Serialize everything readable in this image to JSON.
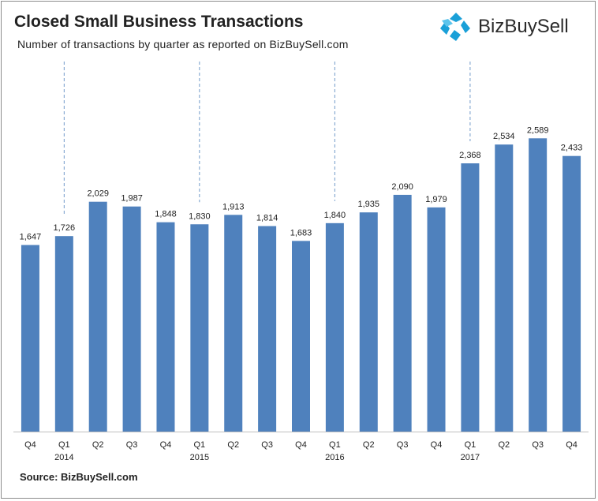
{
  "header": {
    "title": "Closed Small Business Transactions",
    "subtitle": "Number of transactions by quarter as reported  on  BizBuySell.com"
  },
  "logo": {
    "text": "BizBuySell",
    "icon": "bizbuysell-star-icon",
    "color": "#1aa0d8"
  },
  "footer": {
    "source": "Source: BizBuySell.com"
  },
  "colors": {
    "bar": "#4f81bd",
    "text": "#222222"
  },
  "chart_data": {
    "type": "bar",
    "title": "Closed Small Business Transactions",
    "categories": [
      "Q4",
      "Q1",
      "Q2",
      "Q3",
      "Q4",
      "Q1",
      "Q2",
      "Q3",
      "Q4",
      "Q1",
      "Q2",
      "Q3",
      "Q4",
      "Q1",
      "Q2",
      "Q3",
      "Q4"
    ],
    "year_labels": [
      "",
      "2014",
      "",
      "",
      "",
      "2015",
      "",
      "",
      "",
      "2016",
      "",
      "",
      "",
      "2017",
      "",
      "",
      ""
    ],
    "values": [
      1647,
      1726,
      2029,
      1987,
      1848,
      1830,
      1913,
      1814,
      1683,
      1840,
      1935,
      2090,
      1979,
      2368,
      2534,
      2589,
      2433
    ],
    "value_labels": [
      "1,647",
      "1,726",
      "2,029",
      "1,987",
      "1,848",
      "1,830",
      "1,913",
      "1,814",
      "1,683",
      "1,840",
      "1,935",
      "2,090",
      "1,979",
      "2,368",
      "2,534",
      "2,589",
      "2,433"
    ],
    "ylim": [
      0,
      3000
    ],
    "grid": false,
    "legend": "none"
  }
}
